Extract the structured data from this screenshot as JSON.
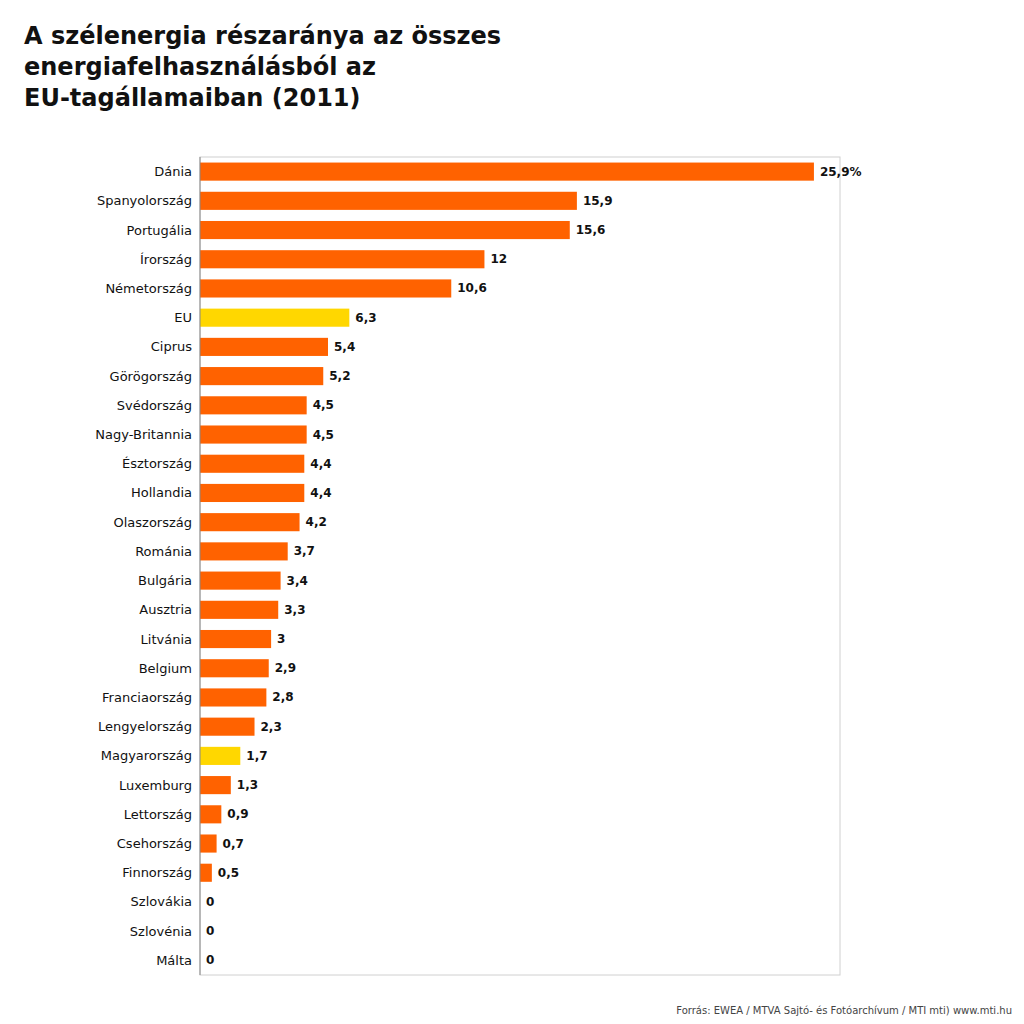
{
  "chart_data": {
    "type": "bar",
    "orientation": "horizontal",
    "title": "A szélenergia részaránya az összes\nenergiafelhasználásból az\nEU-tagállamaiban (2011)",
    "categories": [
      "Dánia",
      "Spanyolország",
      "Portugália",
      "Írország",
      "Németország",
      "EU",
      "Ciprus",
      "Görögország",
      "Svédország",
      "Nagy-Britannia",
      "Észtország",
      "Hollandia",
      "Olaszország",
      "Románia",
      "Bulgária",
      "Ausztria",
      "Litvánia",
      "Belgium",
      "Franciaország",
      "Lengyelország",
      "Magyarország",
      "Luxemburg",
      "Lettország",
      "Csehország",
      "Finnország",
      "Szlovákia",
      "Szlovénia",
      "Málta"
    ],
    "values": [
      25.9,
      15.9,
      15.6,
      12.0,
      10.6,
      6.3,
      5.4,
      5.2,
      4.5,
      4.5,
      4.4,
      4.4,
      4.2,
      3.7,
      3.4,
      3.3,
      3.0,
      2.9,
      2.8,
      2.3,
      1.7,
      1.3,
      0.9,
      0.7,
      0.5,
      0,
      0,
      0
    ],
    "value_labels": [
      "25,9%",
      "15,9",
      "15,6",
      "12",
      "10,6",
      "6,3",
      "5,4",
      "5,2",
      "4,5",
      "4,5",
      "4,4",
      "4,4",
      "4,2",
      "3,7",
      "3,4",
      "3,3",
      "3",
      "2,9",
      "2,8",
      "2,3",
      "1,7",
      "1,3",
      "0,9",
      "0,7",
      "0,5",
      "0",
      "0",
      "0"
    ],
    "colors": [
      "#FF6200",
      "#FF6200",
      "#FF6200",
      "#FF6200",
      "#FF6200",
      "#FFD700",
      "#FF6200",
      "#FF6200",
      "#FF6200",
      "#FF6200",
      "#FF6200",
      "#FF6200",
      "#FF6200",
      "#FF6200",
      "#FF6200",
      "#FF6200",
      "#FF6200",
      "#FF6200",
      "#FF6200",
      "#FF6200",
      "#FFD700",
      "#FF6200",
      "#FF6200",
      "#FF6200",
      "#FF6200",
      "#FF6200",
      "#FF6200",
      "#FF6200"
    ],
    "xlim": [
      0,
      27
    ],
    "data_labels": true,
    "tick_labels": "y",
    "source": "Forrás: EWEA / MTVA Sajtó- és Fotóarchívum / MTI   mti)   www.mti.hu"
  }
}
